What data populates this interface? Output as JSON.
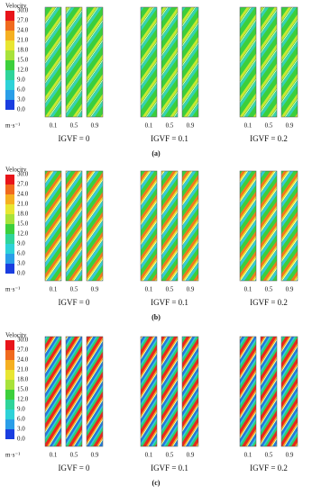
{
  "panels": [
    {
      "label": "(a)",
      "legend": {
        "title": "Velocity",
        "ticks": [
          "30.0",
          "27.0",
          "24.0",
          "21.0",
          "18.0",
          "15.0",
          "12.0",
          "9.0",
          "6.0",
          "3.0",
          "0.0"
        ],
        "unit": "m·s⁻¹"
      },
      "groups": [
        {
          "caption": "IGVF = 0",
          "strips": [
            "0.1",
            "0.5",
            "0.9"
          ]
        },
        {
          "caption": "IGVF = 0.1",
          "strips": [
            "0.1",
            "0.5",
            "0.9"
          ]
        },
        {
          "caption": "IGVF = 0.2",
          "strips": [
            "0.1",
            "0.5",
            "0.9"
          ]
        }
      ]
    },
    {
      "label": "(b)",
      "legend": {
        "title": "Velocity",
        "ticks": [
          "30.0",
          "27.0",
          "24.0",
          "21.0",
          "18.0",
          "15.0",
          "12.0",
          "9.0",
          "6.0",
          "3.0",
          "0.0"
        ],
        "unit": "m·s⁻¹"
      },
      "groups": [
        {
          "caption": "IGVF = 0",
          "strips": [
            "0.1",
            "0.5",
            "0.9"
          ]
        },
        {
          "caption": "IGVF = 0.1",
          "strips": [
            "0.1",
            "0.5",
            "0.9"
          ]
        },
        {
          "caption": "IGVF = 0.2",
          "strips": [
            "0.1",
            "0.5",
            "0.9"
          ]
        }
      ]
    },
    {
      "label": "(c)",
      "legend": {
        "title": "Velocity",
        "ticks": [
          "30.0",
          "27.0",
          "24.0",
          "21.0",
          "18.0",
          "15.0",
          "12.0",
          "9.0",
          "6.0",
          "3.0",
          "0.0"
        ],
        "unit": "m·s⁻¹"
      },
      "groups": [
        {
          "caption": "IGVF = 0",
          "strips": [
            "0.1",
            "0.5",
            "0.9"
          ]
        },
        {
          "caption": "IGVF = 0.1",
          "strips": [
            "0.1",
            "0.5",
            "0.9"
          ]
        },
        {
          "caption": "IGVF = 0.2",
          "strips": [
            "0.1",
            "0.5",
            "0.9"
          ]
        }
      ]
    }
  ]
}
